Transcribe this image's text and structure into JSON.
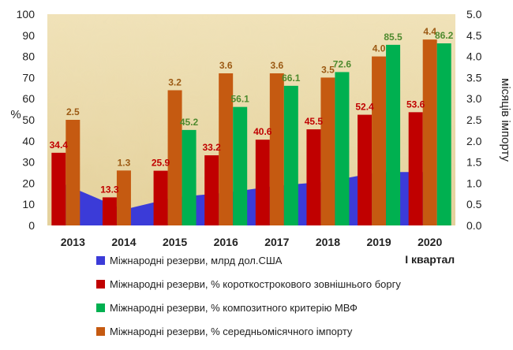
{
  "chart_data": {
    "type": "bar",
    "categories": [
      "2013",
      "2014",
      "2015",
      "2016",
      "2017",
      "2018",
      "2019",
      "2020"
    ],
    "category_note": "І квартал",
    "ylabel_left": "%",
    "ylabel_right": "місяців імпорту",
    "ylim_left": [
      0,
      100
    ],
    "yticks_left": [
      "0",
      "10",
      "20",
      "30",
      "40",
      "50",
      "60",
      "70",
      "80",
      "90",
      "100"
    ],
    "ylim_right": [
      0,
      5
    ],
    "yticks_right": [
      "0.0",
      "0.5",
      "1.0",
      "1.5",
      "2.0",
      "2.5",
      "3.0",
      "3.5",
      "4.0",
      "4.5",
      "5.0"
    ],
    "series": [
      {
        "name": "Міжнародні резерви, млрд дол.США",
        "type": "area",
        "axis": "left",
        "color": "#3b3bd8",
        "values": [
          20.4,
          7.5,
          13.3,
          15.5,
          18.8,
          20.8,
          25.3,
          25.3
        ]
      },
      {
        "name": "Міжнародні резерви, % короткострокового зовнішнього боргу",
        "type": "bar",
        "axis": "left",
        "color": "#c00000",
        "label_color": "#c00000",
        "values": [
          34.4,
          13.3,
          25.9,
          33.2,
          40.6,
          45.5,
          52.4,
          53.6
        ],
        "labels": [
          "34.4",
          "13.3",
          "25.9",
          "33.2",
          "40.6",
          "45.5",
          "52.4",
          "53.6"
        ]
      },
      {
        "name": "Міжнародні резерви, % композитного критерію МВФ",
        "type": "bar",
        "axis": "left",
        "color": "#00b050",
        "label_color": "#4e8a2e",
        "values": [
          null,
          null,
          45.2,
          56.1,
          66.1,
          72.6,
          85.5,
          86.2
        ],
        "labels": [
          "",
          "",
          "45.2",
          "56.1",
          "66.1",
          "72.6",
          "85.5",
          "86.2"
        ]
      },
      {
        "name": "Міжнародні резерви, % середньомісячного імпорту",
        "type": "bar",
        "axis": "right",
        "color": "#c55a11",
        "label_color": "#9c5a14",
        "values": [
          2.5,
          1.3,
          3.2,
          3.6,
          3.6,
          3.5,
          4.0,
          4.4
        ],
        "labels": [
          "2.5",
          "1.3",
          "3.2",
          "3.6",
          "3.6",
          "3.5",
          "4.0",
          "4.4"
        ]
      }
    ],
    "legend": [
      "Міжнародні резерви, млрд дол.США",
      "Міжнародні резерви, % короткострокового зовнішнього боргу",
      "Міжнародні резерви, % композитного критерію МВФ",
      "Міжнародні резерви, % середньомісячного імпорту"
    ],
    "legend_position": "bottom",
    "plot_background": "#e9d7a5"
  }
}
